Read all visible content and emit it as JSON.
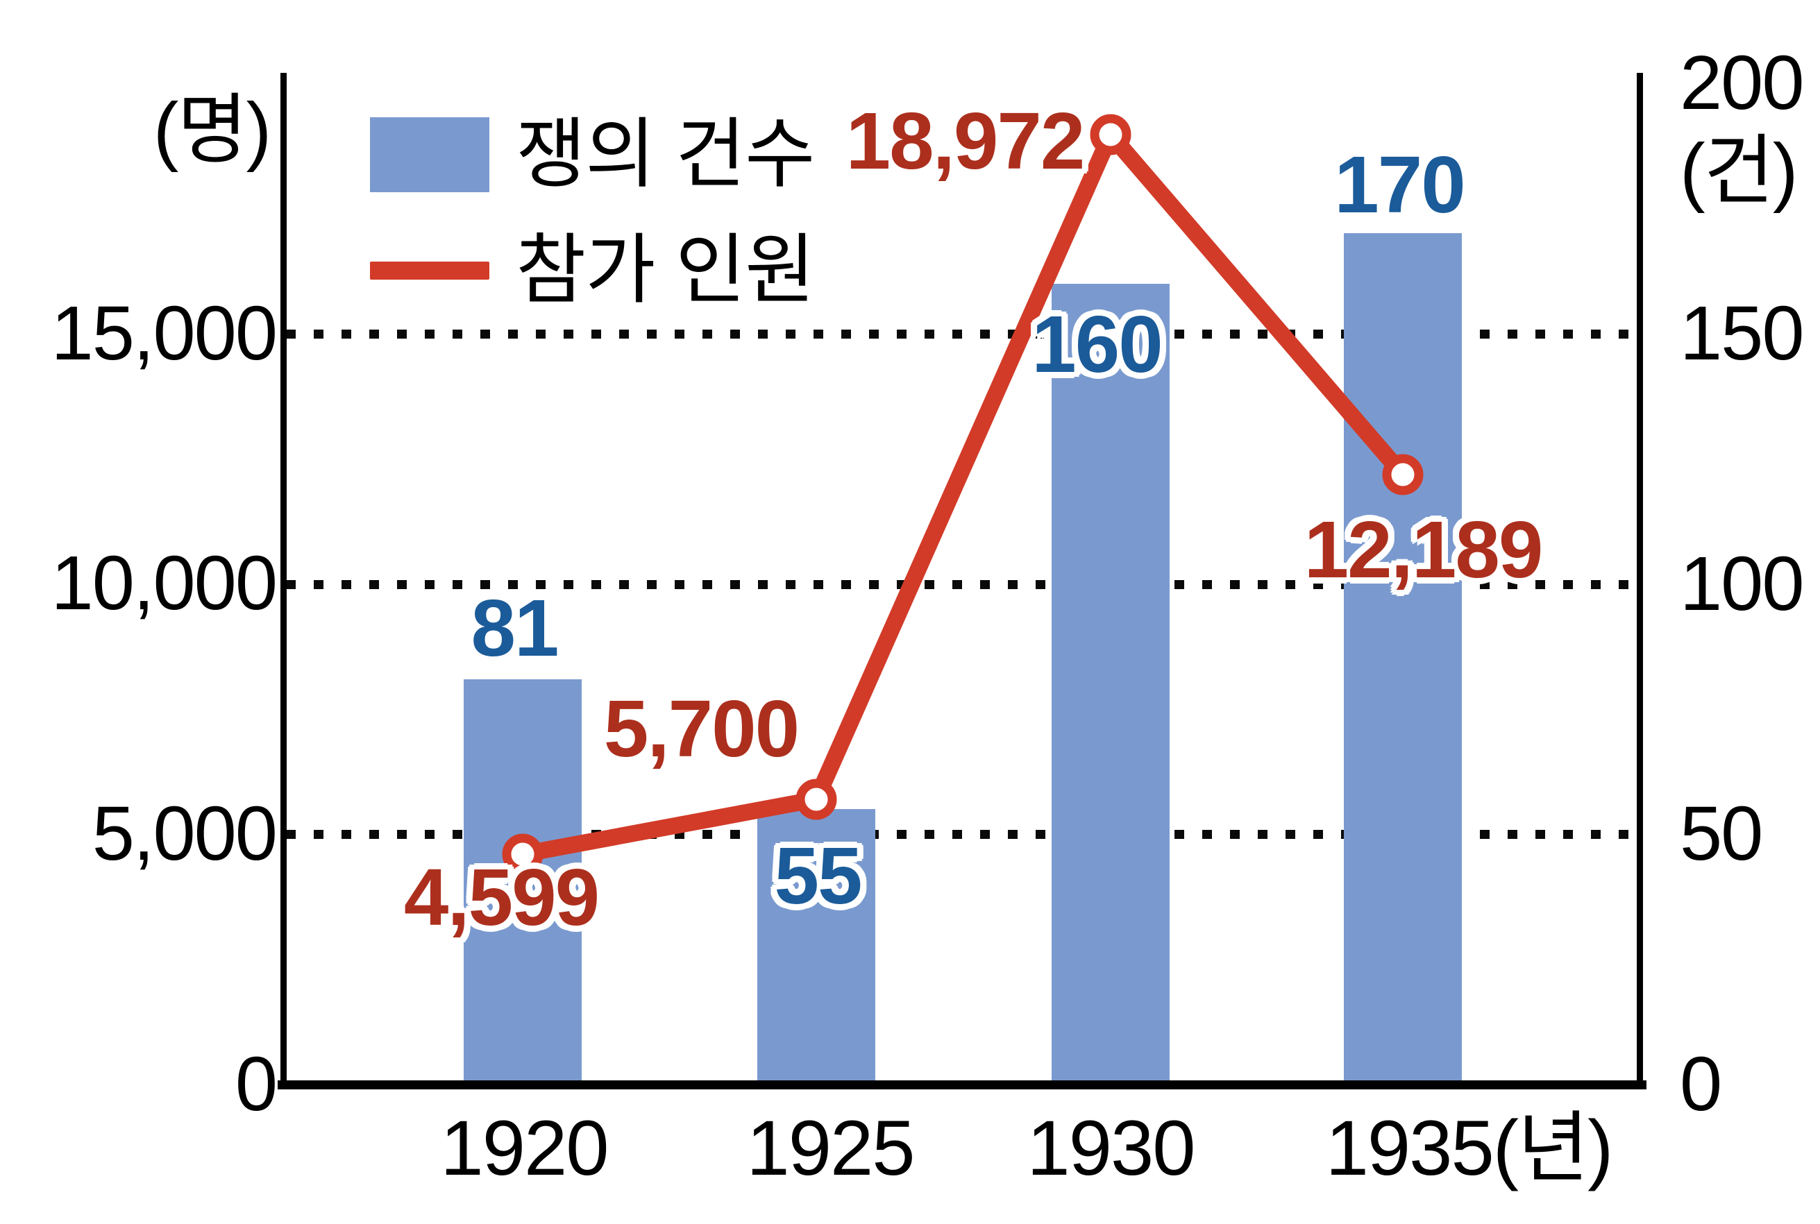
{
  "chart_data": {
    "type": "combo",
    "title": "",
    "categories": [
      "1920",
      "1925",
      "1930",
      "1935"
    ],
    "x_axis_unit_suffix": "(년)",
    "x_tick_labels": [
      "1920",
      "1925",
      "1930",
      "1935(년)"
    ],
    "series": [
      {
        "name": "쟁의 건수",
        "type": "bar",
        "axis": "right",
        "unit": "건",
        "values": [
          81,
          55,
          160,
          170
        ],
        "labels": [
          "81",
          "55",
          "160",
          "170"
        ],
        "color": "#7A9ACF",
        "label_color": "#1B5B99"
      },
      {
        "name": "참가 인원",
        "type": "line",
        "axis": "left",
        "unit": "명",
        "values": [
          4599,
          5700,
          18972,
          12189
        ],
        "labels": [
          "4,599",
          "5,700",
          "18,972",
          "12,189"
        ],
        "color": "#D23B28",
        "label_color": "#AC2F1D",
        "marker": "circle-white-fill"
      }
    ],
    "axes": {
      "left": {
        "unit": "(명)",
        "range": [
          0,
          20000
        ],
        "ticks": [
          {
            "value": 15000,
            "label": "15,000"
          },
          {
            "value": 10000,
            "label": "10,000"
          },
          {
            "value": 5000,
            "label": "5,000"
          },
          {
            "value": 0,
            "label": "0"
          }
        ]
      },
      "right": {
        "unit": "(건)",
        "range": [
          0,
          200
        ],
        "ticks": [
          {
            "value": 200,
            "label": "200"
          },
          {
            "value": 150,
            "label": "150"
          },
          {
            "value": 100,
            "label": "100"
          },
          {
            "value": 50,
            "label": "50"
          },
          {
            "value": 0,
            "label": "0"
          }
        ]
      },
      "gridline_values_right": [
        150,
        100,
        50
      ],
      "grid_style": "dotted",
      "grid_on": true
    },
    "legend": [
      {
        "label": "쟁의 건수",
        "marker": "square",
        "color": "#7A9ACF"
      },
      {
        "label": "참가 인원",
        "marker": "line",
        "color": "#D23B28"
      }
    ],
    "legend_position": "top-left-inside"
  },
  "colors": {
    "bar": "#7A9ACF",
    "line": "#D23B28",
    "count_label": "#1B5B99",
    "person_label": "#AC2F1D",
    "axis": "#000000",
    "background": "#FFFFFF",
    "label_outline": "#FFFFFF"
  }
}
